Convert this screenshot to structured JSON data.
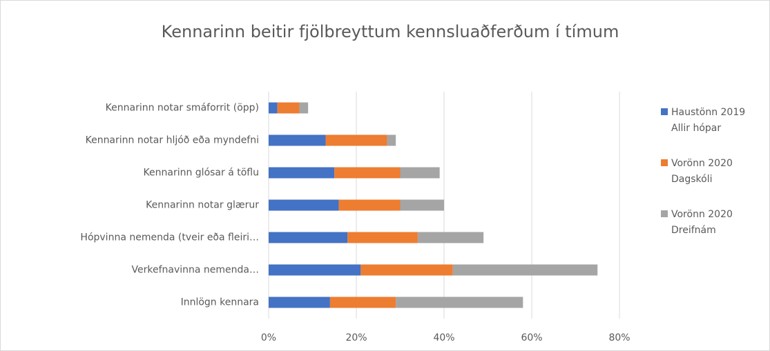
{
  "chart_data": {
    "type": "stacked-bar-horizontal",
    "title": "Kennarinn beitir fjölbreyttum kennsluaðferðum í tímum",
    "categories": [
      "Kennarinn notar smáforrit (öpp)",
      "Kennarinn notar hljóð eða myndefni",
      "Kennarinn glósar á töflu",
      "Kennarinn notar glærur",
      "Hópvinna nemenda (tveir eða fleiri…",
      "Verkefnavinna nemenda…",
      "Innlögn kennara"
    ],
    "series": [
      {
        "name": "Haustönn 2019 Allir hópar",
        "color": "#4472c4",
        "values": [
          2,
          13,
          15,
          16,
          18,
          21,
          14
        ]
      },
      {
        "name": "Vorönn 2020 Dagskóli",
        "color": "#ed7d31",
        "values": [
          5,
          14,
          15,
          14,
          16,
          21,
          15
        ]
      },
      {
        "name": "Vorönn 2020 Dreifnám",
        "color": "#a5a5a5",
        "values": [
          2,
          2,
          9,
          10,
          15,
          33,
          29
        ]
      }
    ],
    "xlim": [
      0,
      80
    ],
    "xticks": [
      {
        "value": 0,
        "label": "0%"
      },
      {
        "value": 20,
        "label": "20%"
      },
      {
        "value": 40,
        "label": "40%"
      },
      {
        "value": 60,
        "label": "60%"
      },
      {
        "value": 80,
        "label": "80%"
      }
    ],
    "grid": true,
    "legend": "right"
  }
}
